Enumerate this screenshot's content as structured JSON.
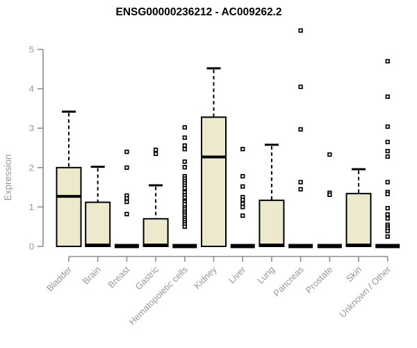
{
  "chart_data": {
    "type": "boxplot",
    "title": "ENSG00000236212 - AC009262.2",
    "ylabel": "Expression",
    "xlabel": "",
    "ylim": [
      0,
      5
    ],
    "yticks": [
      0,
      1,
      2,
      3,
      4,
      5
    ],
    "grid": false,
    "legend": "none",
    "categories": [
      "Bladder",
      "Brain",
      "Breast",
      "Gastric",
      "Hematopoietic cells",
      "Kidney",
      "Liver",
      "Lung",
      "Pancreas",
      "Prostate",
      "Skin",
      "Unknown / Other"
    ],
    "boxes": [
      {
        "label": "Bladder",
        "q1": 0,
        "median": 1.27,
        "q3": 2.0,
        "whisker_low": 0,
        "whisker_high": 3.42,
        "outliers": []
      },
      {
        "label": "Brain",
        "q1": 0,
        "median": 0,
        "q3": 1.12,
        "whisker_low": 0,
        "whisker_high": 2.02,
        "outliers": []
      },
      {
        "label": "Breast",
        "q1": 0,
        "median": 0,
        "q3": 0,
        "whisker_low": 0,
        "whisker_high": 0,
        "outliers": [
          2.4,
          2.0,
          1.29,
          1.22,
          1.13,
          0.82
        ]
      },
      {
        "label": "Gastric",
        "q1": 0,
        "median": 0,
        "q3": 0.7,
        "whisker_low": 0,
        "whisker_high": 1.55,
        "outliers": [
          2.45,
          2.35
        ]
      },
      {
        "label": "Hematopoietic cells",
        "q1": 0,
        "median": 0,
        "q3": 0,
        "whisker_low": 0,
        "whisker_high": 0,
        "outliers": [
          3.02,
          2.76,
          2.56,
          2.47,
          2.15,
          2.01,
          1.78,
          1.72,
          1.66,
          1.6,
          1.54,
          1.48,
          1.37,
          1.3,
          1.24,
          1.13,
          1.07,
          0.99,
          0.94,
          0.88,
          0.83,
          0.78,
          0.72,
          0.67,
          0.61,
          0.56,
          0.5
        ]
      },
      {
        "label": "Kidney",
        "q1": 0,
        "median": 2.27,
        "q3": 3.28,
        "whisker_low": 0,
        "whisker_high": 4.52,
        "outliers": []
      },
      {
        "label": "Liver",
        "q1": 0,
        "median": 0,
        "q3": 0,
        "whisker_low": 0,
        "whisker_high": 0,
        "outliers": [
          2.47,
          1.78,
          1.52,
          1.25,
          1.18,
          1.08,
          1.0,
          0.78
        ]
      },
      {
        "label": "Lung",
        "q1": 0,
        "median": 0,
        "q3": 1.17,
        "whisker_low": 0,
        "whisker_high": 2.58,
        "outliers": []
      },
      {
        "label": "Pancreas",
        "q1": 0,
        "median": 0,
        "q3": 0,
        "whisker_low": 0,
        "whisker_high": 0,
        "outliers": [
          5.48,
          4.05,
          2.97,
          1.63,
          1.45
        ]
      },
      {
        "label": "Prostate",
        "q1": 0,
        "median": 0,
        "q3": 0,
        "whisker_low": 0,
        "whisker_high": 0,
        "outliers": [
          2.33,
          1.36,
          1.31
        ]
      },
      {
        "label": "Skin",
        "q1": 0,
        "median": 0,
        "q3": 1.34,
        "whisker_low": 0,
        "whisker_high": 1.96,
        "outliers": []
      },
      {
        "label": "Unknown / Other",
        "q1": 0,
        "median": 0,
        "q3": 0,
        "whisker_low": 0,
        "whisker_high": 0,
        "outliers": [
          4.7,
          3.8,
          3.04,
          2.65,
          2.42,
          2.28,
          1.63,
          1.38,
          1.33,
          0.97,
          0.81,
          0.71,
          0.55,
          0.5,
          0.45,
          0.39,
          0.25
        ]
      }
    ],
    "colors": {
      "box_fill": "#ede9cc",
      "box_stroke": "#000000",
      "median": "#000000",
      "whisker": "#000000",
      "outlier_stroke": "#000000",
      "outlier_fill": "#ffffff",
      "axis_line": "#8c8c8c",
      "tick_text": "#979797",
      "title_text": "#000000",
      "background": "#ffffff"
    }
  }
}
